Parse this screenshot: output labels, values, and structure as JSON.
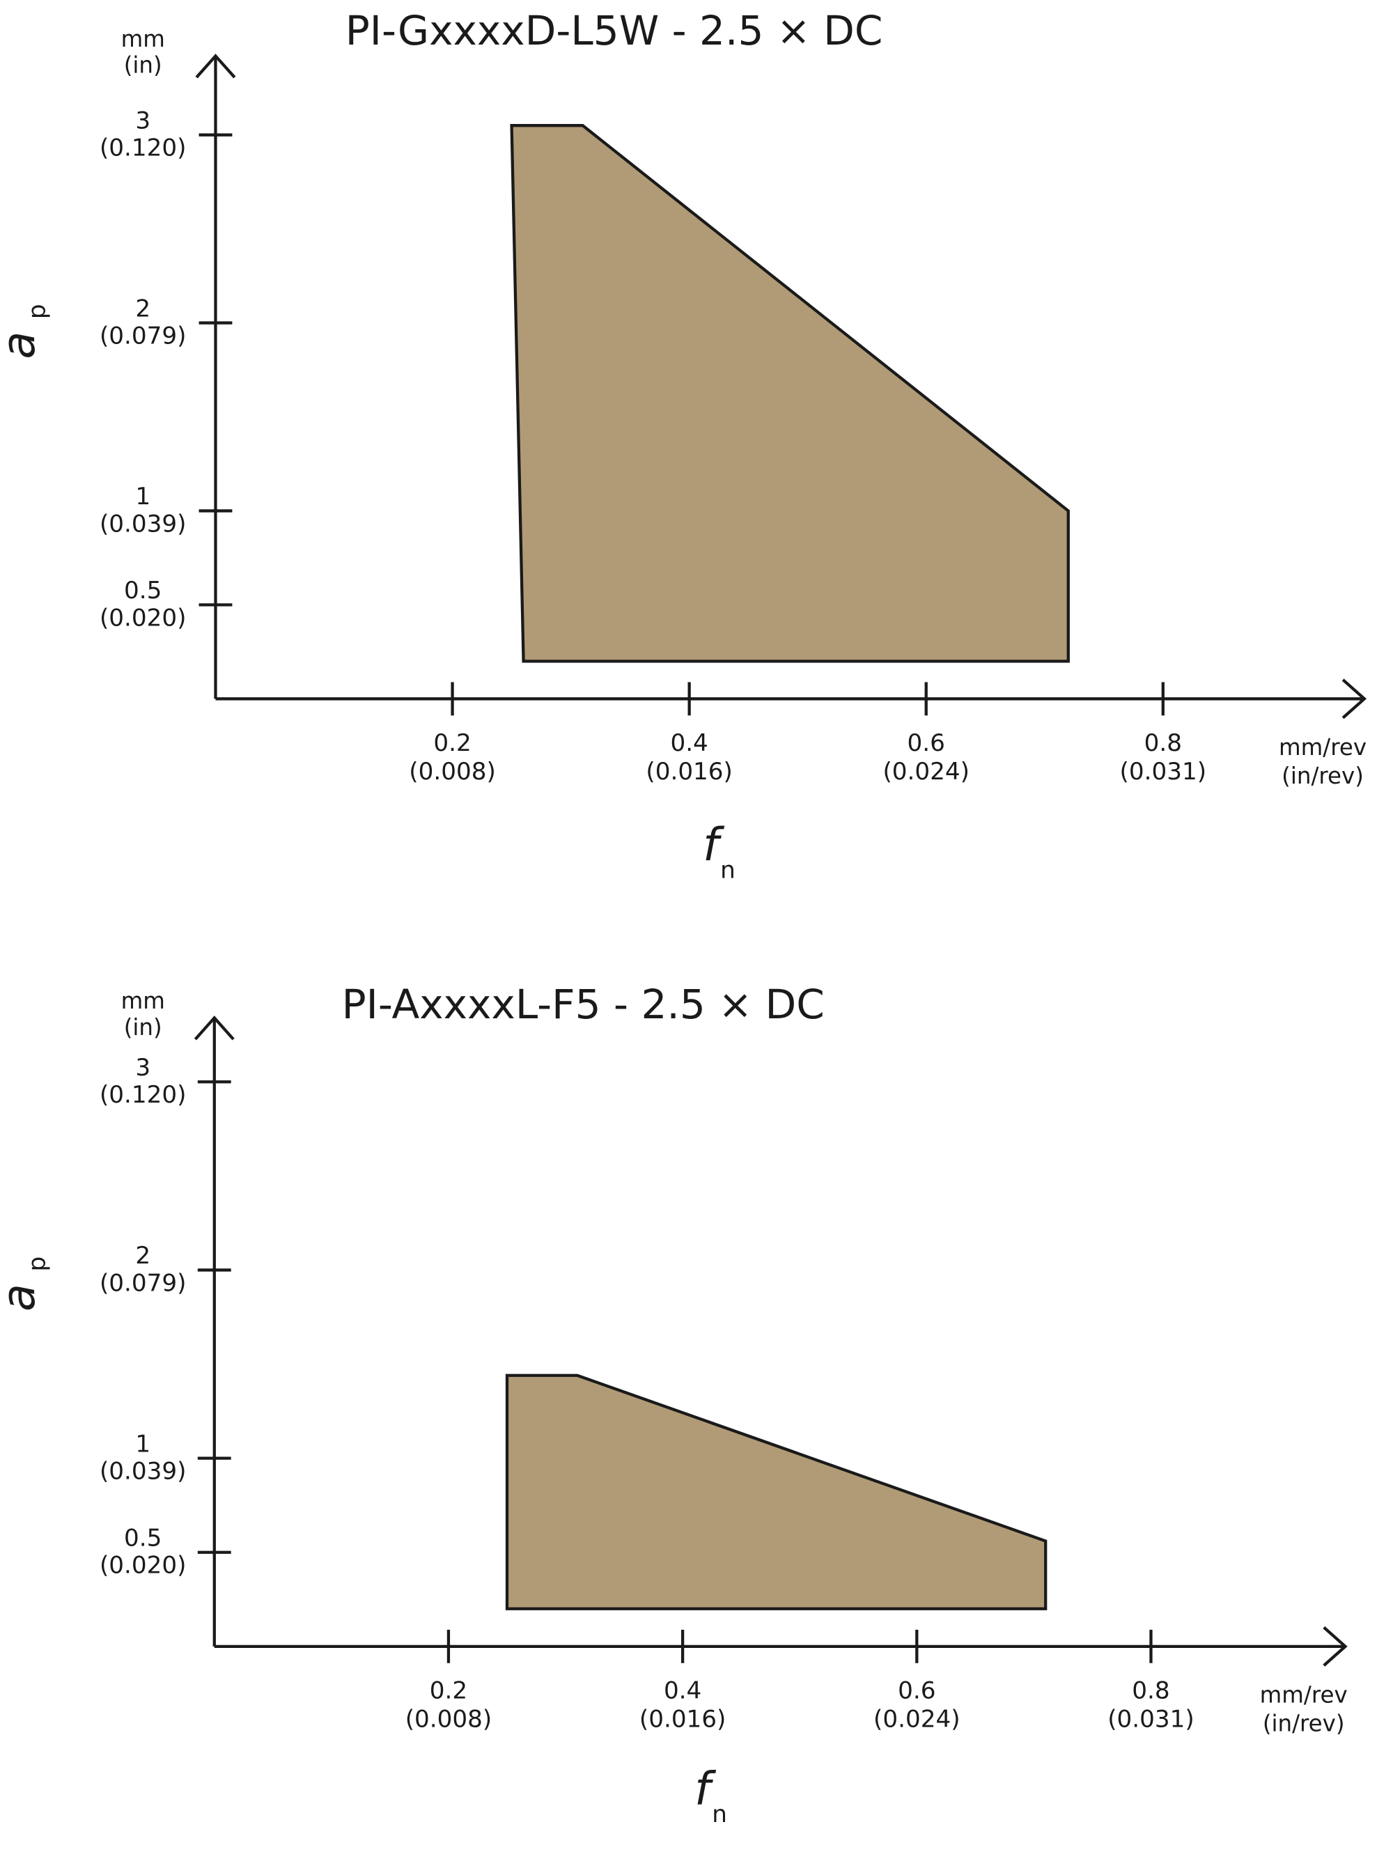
{
  "chart_data": [
    {
      "type": "polygon",
      "title": "PI-GxxxxD-L5W - 2.5 × DC",
      "x": [
        0.25,
        0.31,
        0.72,
        0.72,
        0.26
      ],
      "values": [
        3.05,
        3.05,
        1.0,
        0.2,
        0.2
      ],
      "color": "#b09b76",
      "xlim": [
        0,
        0.97
      ],
      "ylim": [
        0,
        3.42
      ],
      "xticks": [
        {
          "value": 0.2,
          "label": [
            "0.2",
            "(0.008)"
          ]
        },
        {
          "value": 0.4,
          "label": [
            "0.4",
            "(0.016)"
          ]
        },
        {
          "value": 0.6,
          "label": [
            "0.6",
            "(0.024)"
          ]
        },
        {
          "value": 0.8,
          "label": [
            "0.8",
            "(0.031)"
          ]
        }
      ],
      "yticks": [
        {
          "value": 0.5,
          "label": [
            "0.5",
            "(0.020)"
          ]
        },
        {
          "value": 1,
          "label": [
            "1",
            "(0.039)"
          ]
        },
        {
          "value": 2,
          "label": [
            "2",
            "(0.079)"
          ]
        },
        {
          "value": 3,
          "label": [
            "3",
            "(0.120)"
          ]
        }
      ],
      "x_label": {
        "symbol": "f",
        "subscript": "n"
      },
      "y_label": {
        "symbol": "a",
        "subscript": "p"
      },
      "x_units": [
        "mm/rev",
        "(in/rev)"
      ],
      "y_units": [
        "mm",
        "(in)"
      ]
    },
    {
      "type": "polygon",
      "title": "PI-AxxxxL-F5 - 2.5 × DC",
      "x": [
        0.25,
        0.31,
        0.71,
        0.71,
        0.25
      ],
      "values": [
        1.44,
        1.44,
        0.56,
        0.2,
        0.2
      ],
      "color": "#b09b76",
      "xlim": [
        0,
        0.966
      ],
      "ylim": [
        0,
        3.34
      ],
      "xticks": [
        {
          "value": 0.2,
          "label": [
            "0.2",
            "(0.008)"
          ]
        },
        {
          "value": 0.4,
          "label": [
            "0.4",
            "(0.016)"
          ]
        },
        {
          "value": 0.6,
          "label": [
            "0.6",
            "(0.024)"
          ]
        },
        {
          "value": 0.8,
          "label": [
            "0.8",
            "(0.031)"
          ]
        }
      ],
      "yticks": [
        {
          "value": 0.5,
          "label": [
            "0.5",
            "(0.020)"
          ]
        },
        {
          "value": 1,
          "label": [
            "1",
            "(0.039)"
          ]
        },
        {
          "value": 2,
          "label": [
            "2",
            "(0.079)"
          ]
        },
        {
          "value": 3,
          "label": [
            "3",
            "(0.120)"
          ]
        }
      ],
      "x_label": {
        "symbol": "f",
        "subscript": "n"
      },
      "y_label": {
        "symbol": "a",
        "subscript": "p"
      },
      "x_units": [
        "mm/rev",
        "(in/rev)"
      ],
      "y_units": [
        "mm",
        "(in)"
      ]
    }
  ]
}
